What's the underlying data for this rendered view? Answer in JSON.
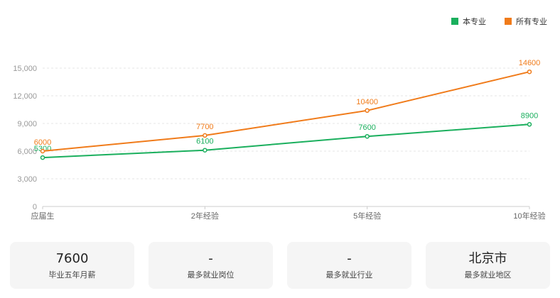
{
  "chart_data": {
    "type": "line",
    "categories": [
      "应届生",
      "2年经验",
      "5年经验",
      "10年经验"
    ],
    "series": [
      {
        "name": "本专业",
        "values": [
          5300,
          6100,
          7600,
          8900
        ],
        "color": "#1aaf5d"
      },
      {
        "name": "所有专业",
        "values": [
          6000,
          7700,
          10400,
          14600
        ],
        "color": "#f07b1a"
      }
    ],
    "ylim": [
      0,
      15000
    ],
    "yticks": [
      0,
      3000,
      6000,
      9000,
      12000,
      15000
    ],
    "ytick_labels": [
      "0",
      "3,000",
      "6,000",
      "9,000",
      "12,000",
      "15,000"
    ],
    "grid": true,
    "legend_position": "top-right",
    "data_labels": true
  },
  "stats": [
    {
      "value": "7600",
      "label": "毕业五年月薪"
    },
    {
      "value": "-",
      "label": "最多就业岗位"
    },
    {
      "value": "-",
      "label": "最多就业行业"
    },
    {
      "value": "北京市",
      "label": "最多就业地区"
    }
  ]
}
